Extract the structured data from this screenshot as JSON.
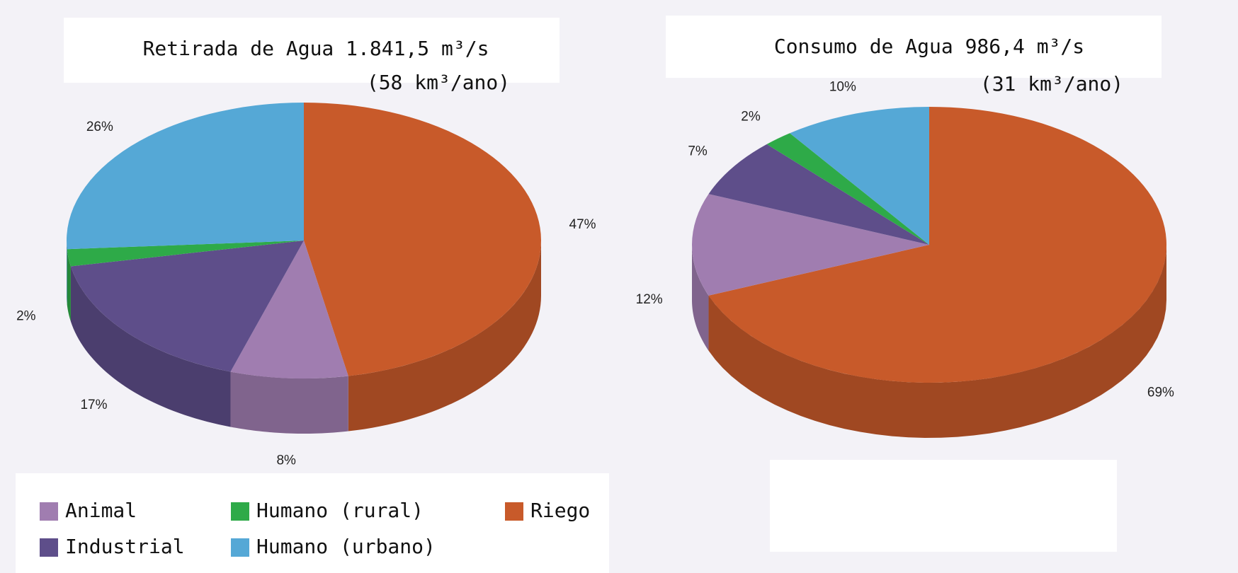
{
  "chart_data": [
    {
      "type": "pie",
      "title": "Retirada de  Agua  1.841,5 m³/s",
      "subtitle": "(58 km³/ano)",
      "categories": [
        "Riego",
        "Animal",
        "Industrial",
        "Humano (rural)",
        "Humano (urbano)"
      ],
      "values": [
        47,
        8,
        17,
        2,
        26
      ],
      "value_labels": [
        "47%",
        "8%",
        "17%",
        "2%",
        "26%"
      ],
      "colors": [
        "#c85a2a",
        "#a07db0",
        "#5e4e8a",
        "#2eaa48",
        "#55a8d6"
      ]
    },
    {
      "type": "pie",
      "title": "Consumo de  Agua  986,4 m³/s",
      "subtitle": "(31 km³/ano)",
      "values": [
        69,
        12,
        7,
        2,
        10
      ],
      "value_labels": [
        "69%",
        "12%",
        "7%",
        "2%",
        "10%"
      ],
      "colors": [
        "#c85a2a",
        "#a07db0",
        "#5e4e8a",
        "#2eaa48",
        "#55a8d6"
      ]
    }
  ]
}
